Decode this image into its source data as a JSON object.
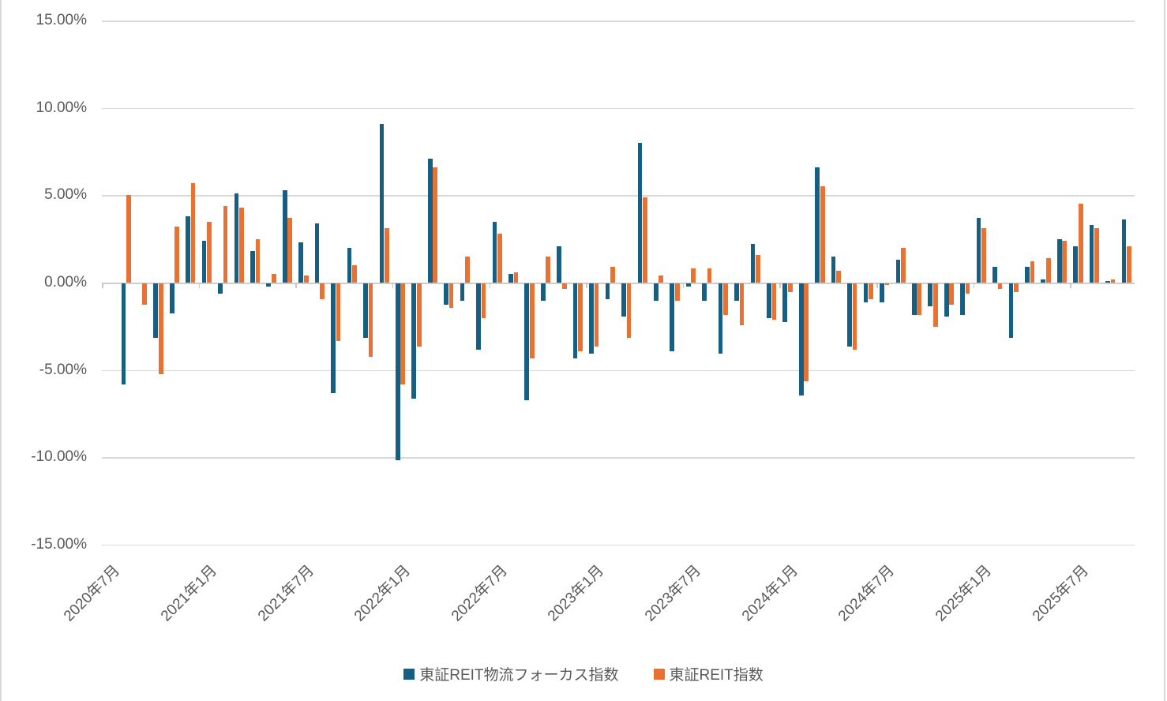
{
  "chart_data": {
    "type": "bar",
    "title": "",
    "grid": true,
    "legend_position": "bottom",
    "ylim": [
      -15,
      15
    ],
    "y_tick_step_pct": 5,
    "y_tick_labels": [
      "15.00%",
      "10.00%",
      "5.00%",
      "0.00%",
      "-5.00%",
      "-10.00%",
      "-15.00%"
    ],
    "x_tick_labels": [
      "2020年7月",
      "2021年1月",
      "2021年7月",
      "2022年1月",
      "2022年7月",
      "2023年1月",
      "2023年7月",
      "2024年1月",
      "2024年7月",
      "2025年1月",
      "2025年7月"
    ],
    "x_label_interval": 6,
    "categories": [
      "2020年7月",
      "2020年8月",
      "2020年9月",
      "2020年10月",
      "2020年11月",
      "2020年12月",
      "2021年1月",
      "2021年2月",
      "2021年3月",
      "2021年4月",
      "2021年5月",
      "2021年6月",
      "2021年7月",
      "2021年8月",
      "2021年9月",
      "2021年10月",
      "2021年11月",
      "2021年12月",
      "2022年1月",
      "2022年2月",
      "2022年3月",
      "2022年4月",
      "2022年5月",
      "2022年6月",
      "2022年7月",
      "2022年8月",
      "2022年9月",
      "2022年10月",
      "2022年11月",
      "2022年12月",
      "2023年1月",
      "2023年2月",
      "2023年3月",
      "2023年4月",
      "2023年5月",
      "2023年6月",
      "2023年7月",
      "2023年8月",
      "2023年9月",
      "2023年10月",
      "2023年11月",
      "2023年12月",
      "2024年1月",
      "2024年2月",
      "2024年3月",
      "2024年4月",
      "2024年5月",
      "2024年6月",
      "2024年7月",
      "2024年8月",
      "2024年9月",
      "2024年10月",
      "2024年11月",
      "2024年12月",
      "2025年1月",
      "2025年2月",
      "2025年3月",
      "2025年4月",
      "2025年5月",
      "2025年6月",
      "2025年7月",
      "2025年8月",
      "2025年9月"
    ],
    "series": [
      {
        "name": "東証REIT物流フォーカス指数",
        "color": "#156082",
        "values_pct": [
          -5.8,
          0,
          -3.1,
          -1.7,
          3.8,
          2.4,
          -0.6,
          5.1,
          1.8,
          -0.2,
          5.3,
          2.3,
          3.4,
          -6.3,
          2.0,
          -3.1,
          9.1,
          -10.1,
          -6.6,
          7.1,
          -1.2,
          -1.0,
          -3.8,
          3.5,
          0.5,
          -6.7,
          -1.0,
          2.1,
          -4.3,
          -4.0,
          -0.9,
          -1.9,
          8.0,
          -1.0,
          -3.9,
          -0.2,
          -1.0,
          -4.0,
          -1.0,
          2.2,
          -2.0,
          -2.2,
          -6.4,
          6.6,
          1.5,
          -3.6,
          -1.1,
          -1.1,
          1.3,
          -1.8,
          -1.3,
          -1.9,
          -1.8,
          3.7,
          0.9,
          -3.1,
          0.9,
          0.2,
          2.5,
          2.1,
          3.3,
          0.1,
          3.6
        ]
      },
      {
        "name": "東証REIT指数",
        "color": "#E97132",
        "values_pct": [
          5.0,
          -1.2,
          -5.2,
          3.2,
          5.7,
          3.5,
          4.4,
          4.3,
          2.5,
          0.5,
          3.7,
          0.4,
          -0.9,
          -3.3,
          1.0,
          -4.2,
          3.1,
          -5.8,
          -3.6,
          6.6,
          -1.4,
          1.5,
          -2.0,
          2.8,
          0.6,
          -4.3,
          1.5,
          -0.3,
          -3.9,
          -3.6,
          0.9,
          -3.1,
          4.9,
          0.4,
          -1.0,
          0.8,
          0.8,
          -1.8,
          -2.4,
          1.6,
          -2.1,
          -0.5,
          -5.6,
          5.5,
          0.7,
          -3.8,
          -0.9,
          -0.1,
          2.0,
          -1.8,
          -2.5,
          -1.2,
          -0.6,
          3.1,
          -0.3,
          -0.5,
          1.2,
          1.4,
          2.4,
          4.5,
          3.1,
          0.2,
          2.1
        ]
      }
    ],
    "colors": {
      "series1": "#156082",
      "series2": "#E97132",
      "gridline": "#D9D9D9",
      "axis_line": "#CDCDCD",
      "axis_text": "#595959"
    }
  }
}
